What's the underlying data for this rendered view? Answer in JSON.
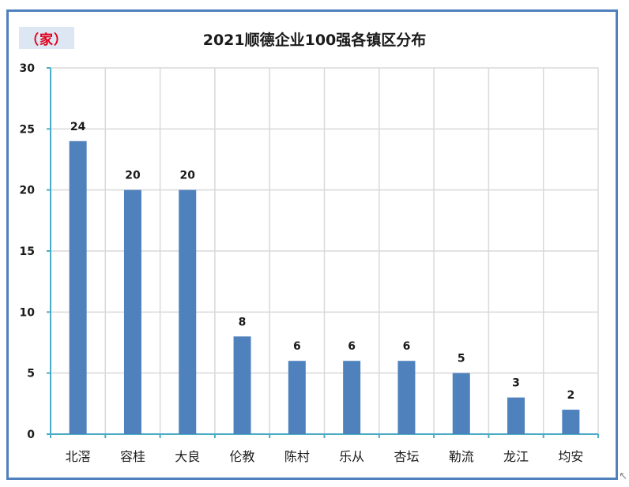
{
  "unit_label": "（家）",
  "colors": {
    "frame": "#4f81bd",
    "bar": "#4f81bd",
    "badge_bg": "#dde6f3",
    "unit_text": "#e0001b",
    "grid": "#d9d9d9",
    "axis": "#4bacc6"
  },
  "chart_data": {
    "type": "bar",
    "title": "2021顺德企业100强各镇区分布",
    "xlabel": "",
    "ylabel": "（家）",
    "categories": [
      "北滘",
      "容桂",
      "大良",
      "伦教",
      "陈村",
      "乐从",
      "杏坛",
      "勒流",
      "龙江",
      "均安"
    ],
    "values": [
      24,
      20,
      20,
      8,
      6,
      6,
      6,
      5,
      3,
      2
    ],
    "ylim": [
      0,
      30
    ],
    "yticks": [
      0,
      5,
      10,
      15,
      20,
      25,
      30
    ],
    "grid": true,
    "data_labels": true
  }
}
